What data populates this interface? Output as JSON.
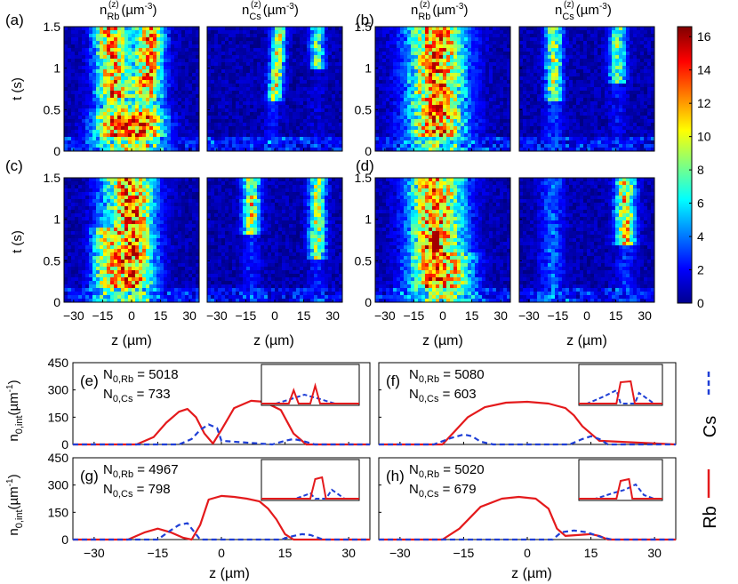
{
  "figure": {
    "panel_labels": {
      "a": "(a)",
      "b": "(b)",
      "c": "(c)",
      "d": "(d)",
      "e": "(e)",
      "f": "(f)",
      "g": "(g)",
      "h": "(h)"
    },
    "col_titles": {
      "rb_main": "n",
      "rb_sup": "(z)",
      "rb_sub": "Rb",
      "cs_sub": "Cs",
      "unit": "(µm",
      "unit_sup": "-3",
      "unit_close": ")"
    },
    "heatmap_ylabel": "t (s)",
    "heatmap_yticks": [
      "1.5",
      "1",
      "0.5",
      "0"
    ],
    "heatmap_xticks": [
      "−30",
      "−15",
      "0",
      "15",
      "30"
    ],
    "xlabel": "z (µm)",
    "colorbar": {
      "ticks": [
        "16",
        "14",
        "12",
        "10",
        "8",
        "6",
        "4",
        "2",
        "0"
      ],
      "colors": [
        "#00008f",
        "#0000ff",
        "#0080ff",
        "#00ffff",
        "#80ff80",
        "#ffff00",
        "#ff8000",
        "#ff0000",
        "#800000"
      ]
    },
    "line_ylabel_main": "n",
    "line_ylabel_sub": "0,int",
    "line_ylabel_unit": "(µm",
    "line_ylabel_unit_sup": "-1",
    "line_ylabel_close": ")",
    "line_yticks": [
      "450",
      "300",
      "150",
      "0"
    ],
    "line_xticks": [
      "−30",
      "−15",
      "0",
      "15",
      "30"
    ],
    "legend": {
      "cs": "Cs",
      "rb": "Rb"
    },
    "legend_colors": {
      "rb": "#e41a1c",
      "cs": "#1f3fd6"
    },
    "annotations": {
      "e_rb": "N",
      "e_rb_sub": "0,Rb",
      "e_rb_val": " = 5018",
      "e_cs_sub": "0,Cs",
      "e_cs_val": " = 733",
      "f_rb_val": " = 5080",
      "f_cs_val": " = 603",
      "g_rb_val": " = 4967",
      "g_cs_val": " = 798",
      "h_rb_val": " = 5020",
      "h_cs_val": " = 679"
    }
  },
  "chart_data": [
    {
      "type": "line",
      "title": "(e)",
      "xlabel": "z (µm)",
      "ylabel": "n0,int (µm-1)",
      "xlim": [
        -35,
        35
      ],
      "ylim": [
        0,
        450
      ],
      "series": [
        {
          "name": "Rb",
          "x": [
            -35,
            -20,
            -16,
            -13,
            -10,
            -8,
            -6,
            -4,
            -2,
            0,
            3,
            7,
            10,
            14,
            17,
            20,
            35
          ],
          "values": [
            0,
            0,
            40,
            120,
            180,
            195,
            150,
            60,
            5,
            80,
            200,
            240,
            235,
            190,
            60,
            0,
            0
          ]
        },
        {
          "name": "Cs",
          "x": [
            -35,
            -10,
            -7,
            -5,
            -3,
            -1,
            0,
            12,
            15,
            17,
            19,
            22,
            35
          ],
          "values": [
            0,
            0,
            30,
            80,
            110,
            90,
            20,
            0,
            20,
            30,
            20,
            0,
            0
          ]
        }
      ]
    },
    {
      "type": "line",
      "title": "(f)",
      "xlabel": "z (µm)",
      "ylabel": "n0,int (µm-1)",
      "xlim": [
        -35,
        35
      ],
      "ylim": [
        0,
        450
      ],
      "series": [
        {
          "name": "Rb",
          "x": [
            -35,
            -20,
            -14,
            -10,
            -5,
            0,
            5,
            9,
            11,
            13,
            17,
            35
          ],
          "values": [
            0,
            0,
            150,
            205,
            230,
            235,
            225,
            200,
            160,
            100,
            20,
            0
          ]
        },
        {
          "name": "Cs",
          "x": [
            -35,
            -22,
            -18,
            -15,
            -13,
            -11,
            -8,
            10,
            13,
            15,
            17,
            19,
            35
          ],
          "values": [
            0,
            0,
            35,
            55,
            45,
            15,
            0,
            0,
            30,
            45,
            30,
            0,
            0
          ]
        }
      ]
    },
    {
      "type": "line",
      "title": "(g)",
      "xlabel": "z (µm)",
      "ylabel": "n0,int (µm-1)",
      "xlim": [
        -35,
        35
      ],
      "ylim": [
        0,
        450
      ],
      "series": [
        {
          "name": "Rb",
          "x": [
            -35,
            -22,
            -18,
            -15,
            -12,
            -9,
            -7,
            -5,
            -3,
            0,
            3,
            6,
            9,
            11,
            13,
            15,
            17,
            35
          ],
          "values": [
            0,
            0,
            40,
            60,
            40,
            10,
            0,
            80,
            220,
            240,
            235,
            225,
            210,
            170,
            110,
            30,
            0,
            0
          ]
        },
        {
          "name": "Cs",
          "x": [
            -35,
            -15,
            -12,
            -10,
            -8,
            -6,
            -5,
            14,
            17,
            19,
            21,
            24,
            35
          ],
          "values": [
            0,
            0,
            50,
            80,
            90,
            30,
            0,
            0,
            20,
            30,
            25,
            0,
            0
          ]
        }
      ]
    },
    {
      "type": "line",
      "title": "(h)",
      "xlabel": "z (µm)",
      "ylabel": "n0,int (µm-1)",
      "xlim": [
        -35,
        35
      ],
      "ylim": [
        0,
        450
      ],
      "series": [
        {
          "name": "Rb",
          "x": [
            -35,
            -20,
            -16,
            -11,
            -6,
            -2,
            2,
            5,
            7,
            9,
            12,
            15,
            17,
            19,
            35
          ],
          "values": [
            0,
            0,
            60,
            180,
            225,
            235,
            225,
            170,
            60,
            20,
            25,
            30,
            20,
            0,
            0
          ]
        },
        {
          "name": "Cs",
          "x": [
            -35,
            -10,
            6,
            8,
            11,
            14,
            16,
            18,
            20,
            35
          ],
          "values": [
            0,
            0,
            0,
            40,
            50,
            40,
            25,
            10,
            0,
            0
          ]
        }
      ]
    }
  ]
}
